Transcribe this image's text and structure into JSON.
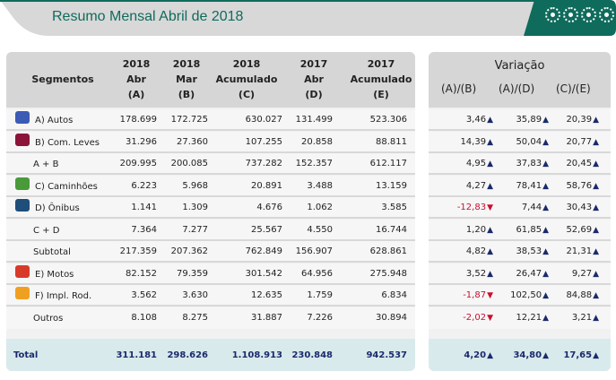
{
  "title": "Resumo Mensal Abril de 2018",
  "colors": {
    "accent": "#0f6b5c",
    "up": "#1a2a6c",
    "down": "#c8102e"
  },
  "headers": [
    {
      "l1": "Segmentos",
      "l2": "",
      "l3": ""
    },
    {
      "l1": "2018",
      "l2": "Abr",
      "l3": "(A)"
    },
    {
      "l1": "2018",
      "l2": "Mar",
      "l3": "(B)"
    },
    {
      "l1": "2018",
      "l2": "Acumulado",
      "l3": "(C)"
    },
    {
      "l1": "2017",
      "l2": "Abr",
      "l3": "(D)"
    },
    {
      "l1": "2017",
      "l2": "Acumulado",
      "l3": "(E)"
    }
  ],
  "variacao": {
    "title": "Variação",
    "cols": [
      "(A)/(B)",
      "(A)/(D)",
      "(C)/(E)"
    ]
  },
  "rows": [
    {
      "label": "A) Autos",
      "icon": "car-icon",
      "v": [
        "178.699",
        "172.725",
        "630.027",
        "131.499",
        "523.306"
      ],
      "var": [
        "3,46",
        "35,89",
        "20,39"
      ]
    },
    {
      "label": "B) Com. Leves",
      "icon": "van-icon",
      "v": [
        "31.296",
        "27.360",
        "107.255",
        "20.858",
        "88.811"
      ],
      "var": [
        "14,39",
        "50,04",
        "20,77"
      ]
    },
    {
      "label": "A + B",
      "icon": "",
      "v": [
        "209.995",
        "200.085",
        "737.282",
        "152.357",
        "612.117"
      ],
      "var": [
        "4,95",
        "37,83",
        "20,45"
      ]
    },
    {
      "label": "C) Caminhões",
      "icon": "truck-icon",
      "v": [
        "6.223",
        "5.968",
        "20.891",
        "3.488",
        "13.159"
      ],
      "var": [
        "4,27",
        "78,41",
        "58,76"
      ]
    },
    {
      "label": "D) Ônibus",
      "icon": "bus-icon",
      "v": [
        "1.141",
        "1.309",
        "4.676",
        "1.062",
        "3.585"
      ],
      "var": [
        "-12,83",
        "7,44",
        "30,43"
      ]
    },
    {
      "label": "C + D",
      "icon": "",
      "v": [
        "7.364",
        "7.277",
        "25.567",
        "4.550",
        "16.744"
      ],
      "var": [
        "1,20",
        "61,85",
        "52,69"
      ]
    },
    {
      "label": "Subtotal",
      "icon": "",
      "v": [
        "217.359",
        "207.362",
        "762.849",
        "156.907",
        "628.861"
      ],
      "var": [
        "4,82",
        "38,53",
        "21,31"
      ]
    },
    {
      "label": "E) Motos",
      "icon": "motorcycle-icon",
      "v": [
        "82.152",
        "79.359",
        "301.542",
        "64.956",
        "275.948"
      ],
      "var": [
        "3,52",
        "26,47",
        "9,27"
      ]
    },
    {
      "label": "F) Impl. Rod.",
      "icon": "trailer-icon",
      "v": [
        "3.562",
        "3.630",
        "12.635",
        "1.759",
        "6.834"
      ],
      "var": [
        "-1,87",
        "102,50",
        "84,88"
      ]
    },
    {
      "label": "Outros",
      "icon": "",
      "v": [
        "8.108",
        "8.275",
        "31.887",
        "7.226",
        "30.894"
      ],
      "var": [
        "-2,02",
        "12,21",
        "3,21"
      ]
    }
  ],
  "total": {
    "label": "Total",
    "v": [
      "311.181",
      "298.626",
      "1.108.913",
      "230.848",
      "942.537"
    ],
    "var": [
      "4,20",
      "34,80",
      "17,65"
    ]
  }
}
